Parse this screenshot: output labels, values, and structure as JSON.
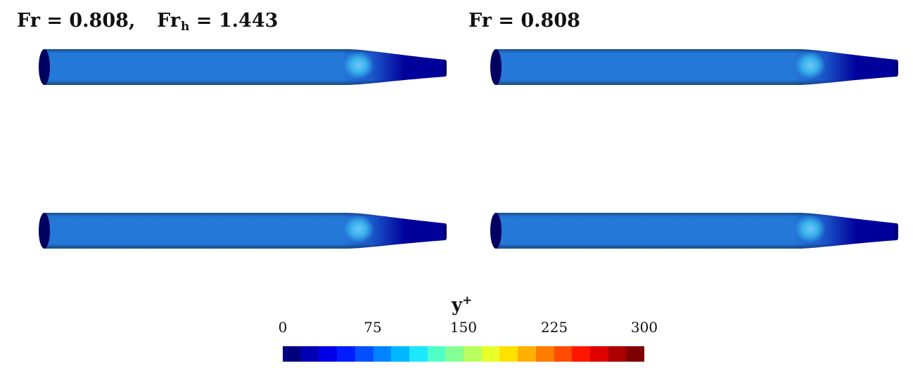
{
  "titles": {
    "left": {
      "fr_label": "Fr",
      "fr_value": "0.808,",
      "frh_label": "Fr",
      "frh_sub": "h",
      "frh_value": "1.443"
    },
    "right": {
      "fr_label": "Fr",
      "fr_value": "0.808"
    }
  },
  "colorbar": {
    "label": "y",
    "label_sup": "+",
    "ticks": [
      "0",
      "75",
      "150",
      "225",
      "300"
    ],
    "colors": [
      "#00007f",
      "#0000b4",
      "#0000e8",
      "#001cff",
      "#0050ff",
      "#0084ff",
      "#00b8ff",
      "#1ce8ff",
      "#50ffc7",
      "#84ff93",
      "#b8ff5f",
      "#e8ff2a",
      "#ffe200",
      "#ffb000",
      "#ff7c00",
      "#ff4a00",
      "#ff1600",
      "#e00000",
      "#ac0000",
      "#7f0000"
    ]
  },
  "colors": {
    "body": "#2478d8",
    "nose": "#00009a",
    "end_cap": "#000060",
    "highlight": "#7fd6ff"
  }
}
